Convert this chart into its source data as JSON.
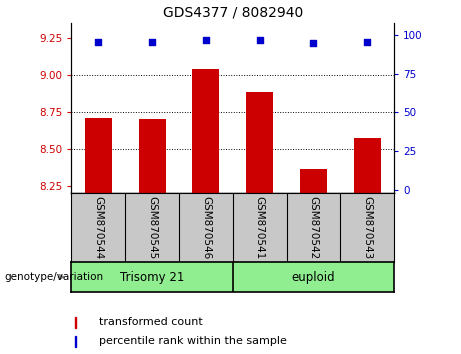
{
  "title": "GDS4377 / 8082940",
  "categories": [
    "GSM870544",
    "GSM870545",
    "GSM870546",
    "GSM870541",
    "GSM870542",
    "GSM870543"
  ],
  "bar_values": [
    8.71,
    8.7,
    9.04,
    8.88,
    8.36,
    8.57
  ],
  "percentile_values": [
    96,
    96,
    97,
    97,
    95,
    96
  ],
  "ylim_left": [
    8.2,
    9.35
  ],
  "ylim_right": [
    -2.16,
    108
  ],
  "yticks_left": [
    8.25,
    8.5,
    8.75,
    9.0,
    9.25
  ],
  "yticks_right": [
    0,
    25,
    50,
    75,
    100
  ],
  "bar_color": "#cc0000",
  "dot_color": "#0000cc",
  "bar_bottom": 8.2,
  "grid_lines": [
    8.5,
    8.75,
    9.0
  ],
  "group1_label": "Trisomy 21",
  "group2_label": "euploid",
  "group_color": "#90ee90",
  "genotype_label": "genotype/variation",
  "legend_bar_label": "transformed count",
  "legend_dot_label": "percentile rank within the sample",
  "tick_color_left": "#cc0000",
  "tick_color_right": "#0000cc",
  "bg_color": "#c8c8c8",
  "plot_bg": "#ffffff",
  "fig_width": 4.61,
  "fig_height": 3.54
}
